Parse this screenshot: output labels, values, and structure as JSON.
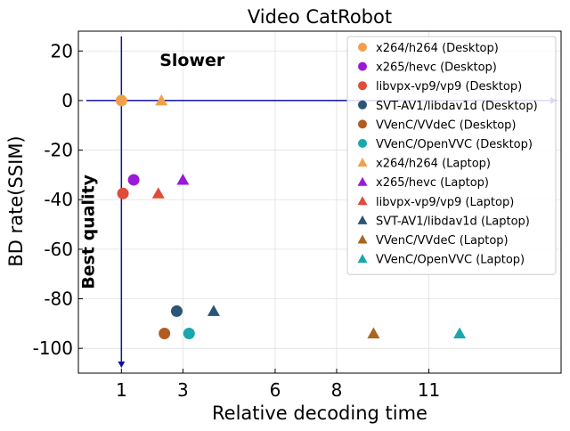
{
  "chart_data": {
    "type": "scatter",
    "title": "Video CatRobot",
    "xlabel": "Relative decoding time",
    "ylabel": "BD rate(SSIM)",
    "xlim": [
      -0.4,
      15.3
    ],
    "ylim": [
      -110,
      28
    ],
    "x_ticks": [
      {
        "value": 1.0,
        "label": "1"
      },
      {
        "value": 3.0,
        "label": "3"
      },
      {
        "value": 6.0,
        "label": "6"
      },
      {
        "value": 8.0,
        "label": "8"
      },
      {
        "value": 11.0,
        "label": "11"
      }
    ],
    "y_ticks": [
      {
        "value": 20,
        "label": "20"
      },
      {
        "value": 0,
        "label": "0"
      },
      {
        "value": -20,
        "label": "-20"
      },
      {
        "value": -40,
        "label": "-40"
      },
      {
        "value": -60,
        "label": "-60"
      },
      {
        "value": -80,
        "label": "-80"
      },
      {
        "value": -100,
        "label": "-100"
      }
    ],
    "grid": true,
    "legend_position": "top-right",
    "annotations": [
      {
        "text": "Slower",
        "x": 3.3,
        "y": 14
      },
      {
        "text": "Best quality",
        "x": 0.1,
        "y": -53
      }
    ],
    "series": [
      {
        "name": "x264/h264 (Desktop)",
        "color": "#f0a04b",
        "marker": "circle",
        "points": [
          {
            "x": 1.0,
            "y": 0
          }
        ]
      },
      {
        "name": "x265/hevc (Desktop)",
        "color": "#9b19d9",
        "marker": "circle",
        "points": [
          {
            "x": 1.4,
            "y": -32
          }
        ]
      },
      {
        "name": "libvpx-vp9/vp9 (Desktop)",
        "color": "#e04b3c",
        "marker": "circle",
        "points": [
          {
            "x": 1.05,
            "y": -37.5
          }
        ]
      },
      {
        "name": "SVT-AV1/libdav1d (Desktop)",
        "color": "#2b5574",
        "marker": "circle",
        "points": [
          {
            "x": 2.8,
            "y": -85
          }
        ]
      },
      {
        "name": "VVenC/VVdeC (Desktop)",
        "color": "#b05c20",
        "marker": "circle",
        "points": [
          {
            "x": 2.4,
            "y": -94
          }
        ]
      },
      {
        "name": "VVenC/OpenVVC (Desktop)",
        "color": "#1aa7ad",
        "marker": "circle",
        "points": [
          {
            "x": 3.2,
            "y": -94
          }
        ]
      },
      {
        "name": "x264/h264 (Laptop)",
        "color": "#f0a04b",
        "marker": "triangle",
        "points": [
          {
            "x": 2.3,
            "y": 0
          }
        ]
      },
      {
        "name": "x265/hevc (Laptop)",
        "color": "#9b19d9",
        "marker": "triangle",
        "points": [
          {
            "x": 3.0,
            "y": -32
          }
        ]
      },
      {
        "name": "libvpx-vp9/vp9 (Laptop)",
        "color": "#e04b3c",
        "marker": "triangle",
        "points": [
          {
            "x": 2.2,
            "y": -37.5
          }
        ]
      },
      {
        "name": "SVT-AV1/libdav1d (Laptop)",
        "color": "#2b5574",
        "marker": "triangle",
        "points": [
          {
            "x": 4.0,
            "y": -85
          }
        ]
      },
      {
        "name": "VVenC/VVdeC (Laptop)",
        "color": "#a8661e",
        "marker": "triangle",
        "points": [
          {
            "x": 9.2,
            "y": -94
          }
        ]
      },
      {
        "name": "VVenC/OpenVVC (Laptop)",
        "color": "#1aa7ad",
        "marker": "triangle",
        "points": [
          {
            "x": 12.0,
            "y": -94
          }
        ]
      }
    ]
  }
}
